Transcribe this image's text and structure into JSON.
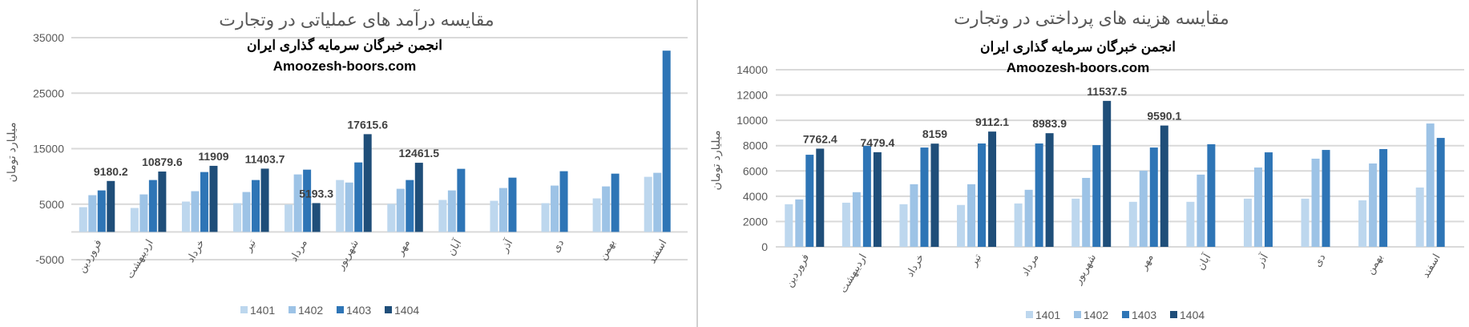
{
  "colors": {
    "1401": "#bdd7ee",
    "1402": "#9dc3e6",
    "1403": "#2e75b6",
    "1404": "#1f4e79",
    "grid": "#d9d9d9",
    "divider": "#d0d0d0"
  },
  "watermark": {
    "line1": "انجمن خبرگان سرمایه گذاری ایران",
    "line2": "Amoozesh-boors.com"
  },
  "chart_data": [
    {
      "type": "bar",
      "title": "مقایسه درآمد های عملیاتی در وتجارت",
      "ylabel": "میلیارد تومان",
      "xlabel": "",
      "ylim": [
        -5000,
        35000
      ],
      "yticks": [
        35000,
        25000,
        15000,
        5000,
        -5000
      ],
      "grid": true,
      "legend": "bottom",
      "categories": [
        "فروردین",
        "اردیبهشت",
        "خرداد",
        "تیر",
        "مرداد",
        "شهریور",
        "مهر",
        "آبان",
        "آذر",
        "دی",
        "بهمن",
        "اسفند"
      ],
      "series": [
        {
          "name": "1401",
          "values": [
            4460,
            4320,
            5470,
            5180,
            4940,
            9350,
            5040,
            5760,
            5610,
            5180,
            6040,
            9930
          ]
        },
        {
          "name": "1402",
          "values": [
            6620,
            6760,
            7340,
            7190,
            10360,
            8900,
            7770,
            7480,
            7910,
            8350,
            8200,
            10650
          ]
        },
        {
          "name": "1403",
          "values": [
            7480,
            9350,
            10790,
            9350,
            11220,
            12520,
            9350,
            11370,
            9780,
            10940,
            10500,
            32660
          ]
        },
        {
          "name": "1404",
          "values": [
            9180.2,
            10879.6,
            11909,
            11403.7,
            5193.3,
            17615.6,
            12461.5,
            null,
            null,
            null,
            null,
            null
          ]
        }
      ],
      "data_labels": [
        "9180.2",
        "10879.6",
        "11909",
        "11403.7",
        "5193.3",
        "17615.6",
        "12461.5"
      ]
    },
    {
      "type": "bar",
      "title": "مقایسه هزینه های پرداختی در وتجارت",
      "ylabel": "میلیارد تومان",
      "xlabel": "",
      "ylim": [
        0,
        14000
      ],
      "yticks": [
        14000,
        12000,
        10000,
        8000,
        6000,
        4000,
        2000,
        0
      ],
      "grid": true,
      "legend": "bottom",
      "categories": [
        "فروردین",
        "اردیبهشت",
        "خرداد",
        "تیر",
        "مرداد",
        "شهریور",
        "مهر",
        "آبان",
        "آذر",
        "دی",
        "بهمن",
        "اسفند"
      ],
      "series": [
        {
          "name": "1401",
          "values": [
            3370,
            3490,
            3370,
            3310,
            3430,
            3810,
            3560,
            3560,
            3810,
            3810,
            3680,
            4690
          ]
        },
        {
          "name": "1402",
          "values": [
            3750,
            4320,
            4950,
            4950,
            4510,
            5450,
            6020,
            5710,
            6270,
            6970,
            6590,
            9750
          ]
        },
        {
          "name": "1403",
          "values": [
            7280,
            7980,
            7850,
            8170,
            8170,
            8040,
            7850,
            8110,
            7470,
            7660,
            7730,
            8610
          ]
        },
        {
          "name": "1404",
          "values": [
            7762.4,
            7479.4,
            8159,
            9112.1,
            8983.9,
            11537.5,
            9590.1,
            null,
            null,
            null,
            null,
            null
          ]
        }
      ],
      "data_labels": [
        "7762.4",
        "7479.4",
        "8159",
        "9112.1",
        "8983.9",
        "11537.5",
        "9590.1"
      ]
    }
  ]
}
